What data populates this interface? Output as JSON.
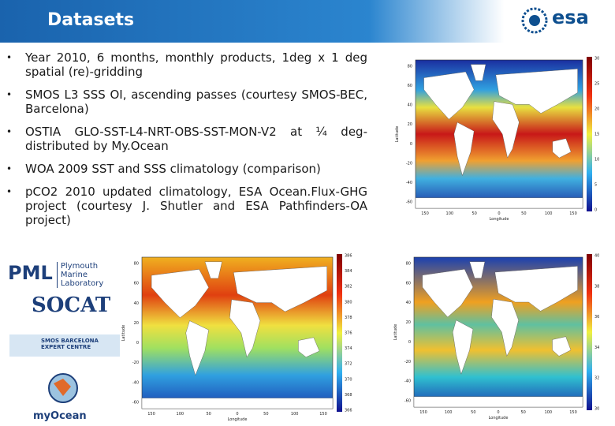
{
  "header": {
    "title": "Datasets",
    "logo": "esa"
  },
  "bullets": [
    "Year 2010, 6 months, monthly products, 1deg x 1 deg spatial (re)-gridding",
    "SMOS L3 SSS OI, ascending passes (courtesy SMOS-BEC, Barcelona)",
    "OSTIA GLO-SST-L4-NRT-OBS-SST-MON-V2 at ¼ deg- distributed by My.Ocean",
    "WOA 2009 SST and SSS climatology (comparison)",
    "pCO2 2010 updated climatology, ESA Ocean.Flux-GHG project (courtesy J. Shutler and ESA Pathfinders-OA project)"
  ],
  "logos": {
    "pml": "PML",
    "pml_sub": "Plymouth Marine Laboratory",
    "socat": "SOCAT",
    "smos": "SMOS BARCELONA EXPERT CENTRE",
    "myocean": "myOcean"
  },
  "maps": [
    {
      "x_label": "Longitude",
      "y_label": "Latitude",
      "lat_ticks": [
        "80",
        "60",
        "40",
        "20",
        "0",
        "-20",
        "-40",
        "-60"
      ],
      "lon_ticks": [
        "150",
        "100",
        "50",
        "0",
        "50",
        "100",
        "150"
      ],
      "colorbar_ticks": [
        "30",
        "25",
        "20",
        "15",
        "10",
        "5",
        "0"
      ]
    },
    {
      "x_label": "Longitude",
      "y_label": "Latitude",
      "lat_ticks": [
        "80",
        "60",
        "40",
        "20",
        "0",
        "-20",
        "-40",
        "-60"
      ],
      "lon_ticks": [
        "150",
        "100",
        "50",
        "0",
        "50",
        "100",
        "150"
      ],
      "colorbar_ticks": [
        "386",
        "384",
        "382",
        "380",
        "378",
        "376",
        "374",
        "372",
        "370",
        "368",
        "366"
      ]
    },
    {
      "x_label": "Longitude",
      "y_label": "Latitude",
      "lat_ticks": [
        "80",
        "60",
        "40",
        "20",
        "0",
        "-20",
        "-40",
        "-60"
      ],
      "lon_ticks": [
        "150",
        "100",
        "50",
        "0",
        "50",
        "100",
        "150"
      ],
      "colorbar_ticks": [
        "40",
        "38",
        "36",
        "34",
        "32",
        "30"
      ]
    }
  ]
}
